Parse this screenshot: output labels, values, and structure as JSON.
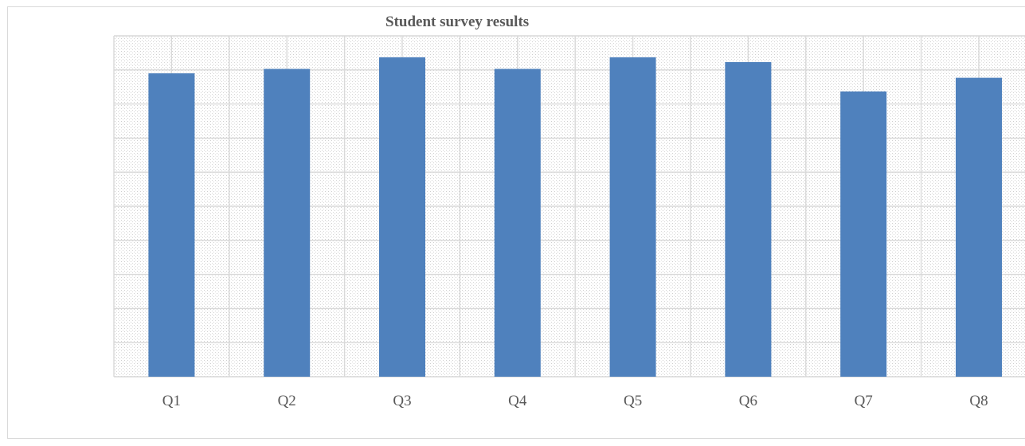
{
  "chart_data": {
    "type": "bar",
    "title": "Student survey results",
    "categories": [
      "Q1",
      "Q2",
      "Q3",
      "Q4",
      "Q5",
      "Q6",
      "Q7",
      "Q8"
    ],
    "values": [
      8.9,
      9.03,
      9.37,
      9.03,
      9.37,
      9.23,
      8.37,
      8.77
    ],
    "xlabel": "",
    "ylabel": "",
    "ylim": [
      0,
      10
    ],
    "grid": true,
    "legend": "none",
    "colors": {
      "bar": "#4f81bd",
      "grid": "#d9d9d9",
      "text": "#595959"
    }
  }
}
